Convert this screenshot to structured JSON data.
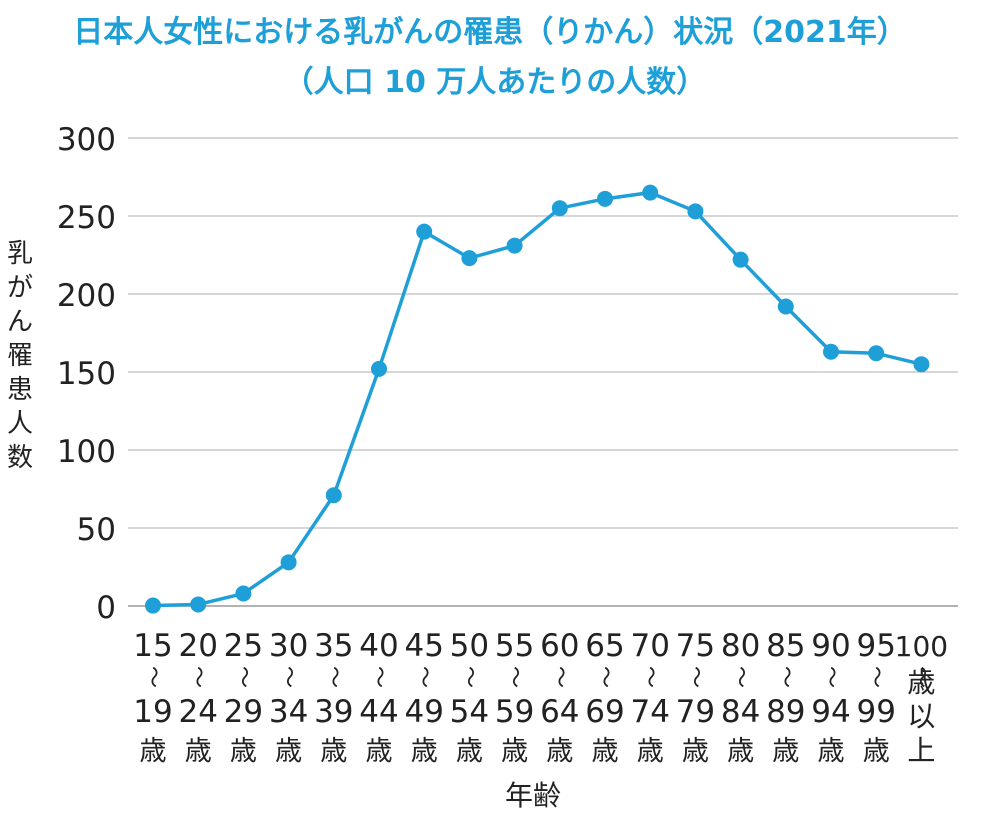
{
  "chart_data": {
    "type": "line",
    "title": "日本人女性における乳がんの罹患（りかん）状況（2021年）",
    "subtitle": "（人口 10 万人あたりの人数）",
    "xlabel": "年齢",
    "ylabel": "乳がん罹患人数",
    "ylim": [
      0,
      300
    ],
    "yticks": [
      "0",
      "50",
      "100",
      "150",
      "200",
      "250",
      "300"
    ],
    "grid": true,
    "categories": [
      {
        "from": "15",
        "to": "19",
        "unit": "歳"
      },
      {
        "from": "20",
        "to": "24",
        "unit": "歳"
      },
      {
        "from": "25",
        "to": "29",
        "unit": "歳"
      },
      {
        "from": "30",
        "to": "34",
        "unit": "歳"
      },
      {
        "from": "35",
        "to": "39",
        "unit": "歳"
      },
      {
        "from": "40",
        "to": "44",
        "unit": "歳"
      },
      {
        "from": "45",
        "to": "49",
        "unit": "歳"
      },
      {
        "from": "50",
        "to": "54",
        "unit": "歳"
      },
      {
        "from": "55",
        "to": "59",
        "unit": "歳"
      },
      {
        "from": "60",
        "to": "64",
        "unit": "歳"
      },
      {
        "from": "65",
        "to": "69",
        "unit": "歳"
      },
      {
        "from": "70",
        "to": "74",
        "unit": "歳"
      },
      {
        "from": "75",
        "to": "79",
        "unit": "歳"
      },
      {
        "from": "80",
        "to": "84",
        "unit": "歳"
      },
      {
        "from": "85",
        "to": "89",
        "unit": "歳"
      },
      {
        "from": "90",
        "to": "94",
        "unit": "歳"
      },
      {
        "from": "95",
        "to": "99",
        "unit": "歳"
      },
      {
        "from": "100",
        "to": "歳以上",
        "unit": ""
      }
    ],
    "range_mark": "〜",
    "values": [
      0.3,
      1,
      8,
      28,
      71,
      152,
      240,
      223,
      231,
      255,
      261,
      265,
      253,
      222,
      192,
      163,
      162,
      155
    ],
    "color": "#1f9fd8"
  }
}
